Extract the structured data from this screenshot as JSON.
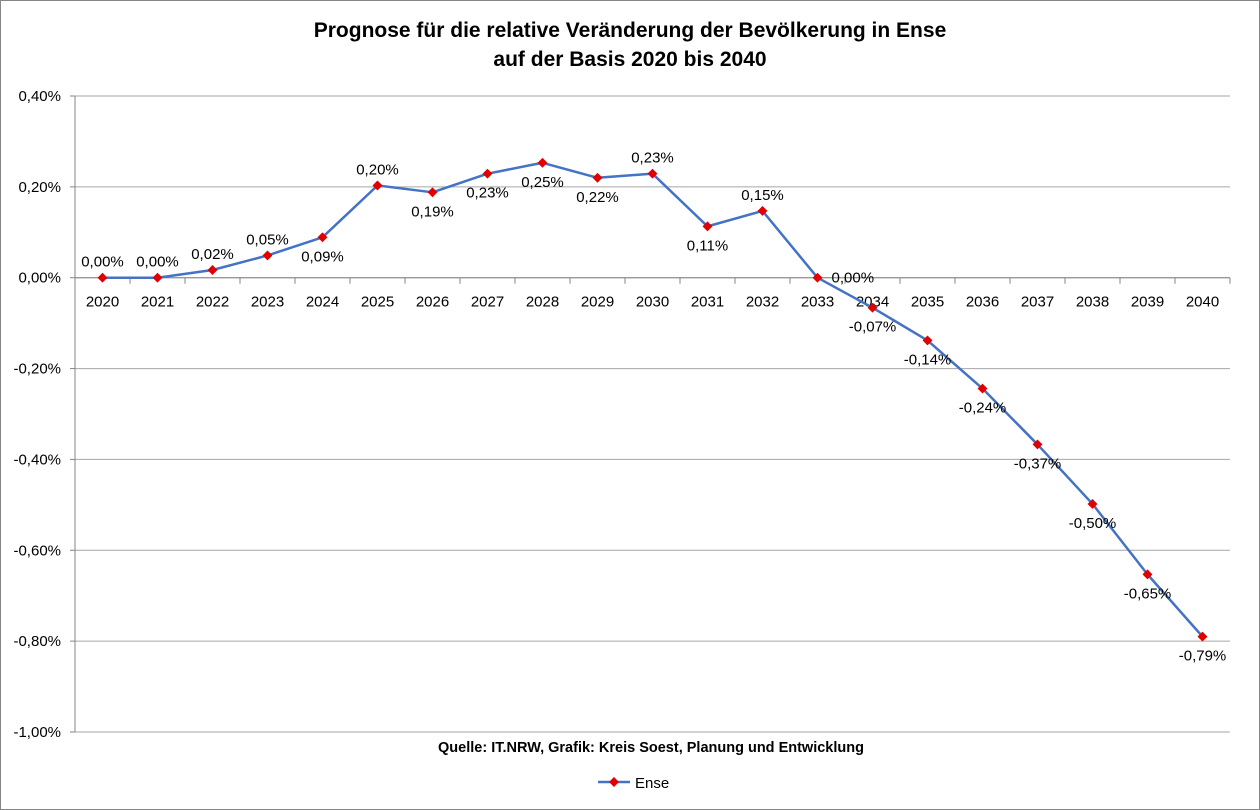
{
  "chart_data": {
    "type": "line",
    "title": [
      "Prognose für die relative Veränderung der Bevölkerung in Ense",
      "auf der Basis 2020 bis 2040"
    ],
    "source_note": "Quelle: IT.NRW, Grafik: Kreis Soest, Planung und Entwicklung",
    "categories": [
      "2020",
      "2021",
      "2022",
      "2023",
      "2024",
      "2025",
      "2026",
      "2027",
      "2028",
      "2029",
      "2030",
      "2031",
      "2032",
      "2033",
      "2034",
      "2035",
      "2036",
      "2037",
      "2038",
      "2039",
      "2040"
    ],
    "series": [
      {
        "name": "Ense",
        "color": "#4472C4",
        "marker_color": "#E00000",
        "values": [
          0.0,
          0.0,
          0.017,
          0.049,
          0.089,
          0.203,
          0.188,
          0.229,
          0.253,
          0.22,
          0.229,
          0.113,
          0.147,
          0.0,
          -0.066,
          -0.138,
          -0.244,
          -0.367,
          -0.498,
          -0.653,
          -0.79
        ],
        "labels": [
          "0,00%",
          "0,00%",
          "0,02%",
          "0,05%",
          "0,09%",
          "0,20%",
          "0,19%",
          "0,23%",
          "0,25%",
          "0,22%",
          "0,23%",
          "0,11%",
          "0,15%",
          "0,00%",
          "-0,07%",
          "-0,14%",
          "-0,24%",
          "-0,37%",
          "-0,50%",
          "-0,65%",
          "-0,79%"
        ],
        "label_positions": [
          "above",
          "above",
          "above",
          "above",
          "below",
          "above",
          "below",
          "below",
          "below",
          "below",
          "above",
          "below",
          "above",
          "right",
          "below",
          "below",
          "below",
          "below",
          "below",
          "below",
          "below"
        ]
      }
    ],
    "ylim": [
      -1.0,
      0.4
    ],
    "yticks": [
      0.4,
      0.2,
      0.0,
      -0.2,
      -0.4,
      -0.6,
      -0.8,
      -1.0
    ],
    "ytick_labels": [
      "0,40%",
      "0,20%",
      "0,00%",
      "-0,20%",
      "-0,40%",
      "-0,60%",
      "-0,80%",
      "-1,00%"
    ],
    "grid": true,
    "legend": {
      "position": "bottom",
      "label": "Ense"
    }
  }
}
